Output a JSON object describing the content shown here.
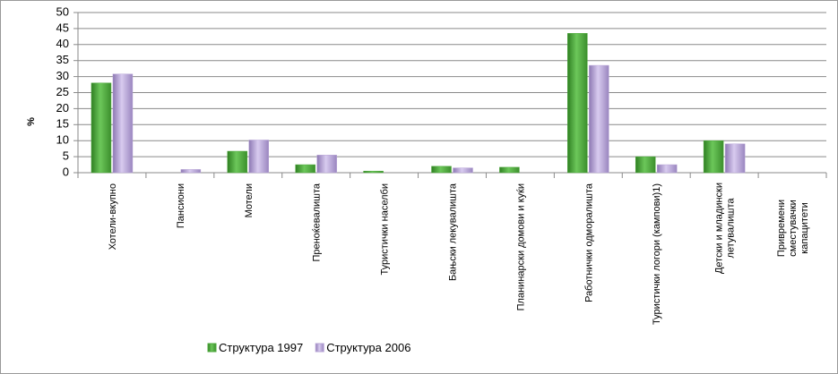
{
  "chart_data": {
    "type": "bar",
    "ylabel": "%",
    "categories": [
      "Хотели-вкупно",
      "Пансиони",
      "Мотели",
      "Преноќевалишта",
      "Туристички населби",
      "Бањски лекувалишта",
      "Планинарски домови и куќи",
      "Работнички одморалишта",
      "Туристички логори (кампови)1)",
      "Детски и младински летувалишта",
      "Привремени сместувачки капацитети"
    ],
    "series": [
      {
        "name": "Структура 1997",
        "color": "#4ea93c",
        "values": [
          28,
          0,
          6.7,
          2.5,
          0.5,
          2,
          1.7,
          43.5,
          5,
          10,
          0
        ]
      },
      {
        "name": "Структура 2006",
        "color": "#b7a4d6",
        "values": [
          30.8,
          1,
          10.2,
          5.5,
          0,
          1.5,
          0,
          33.5,
          2.5,
          9,
          0
        ]
      }
    ],
    "ylim": [
      0,
      50
    ],
    "yticks": [
      0,
      5,
      10,
      15,
      20,
      25,
      30,
      35,
      40,
      45,
      50
    ],
    "grid": true,
    "legend": "bottom"
  }
}
